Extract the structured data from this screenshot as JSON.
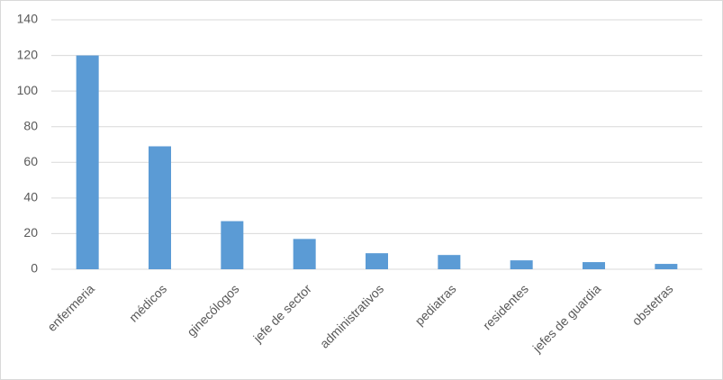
{
  "chart_data": {
    "type": "bar",
    "categories": [
      "enfermeria",
      "médicos",
      "ginecólogos",
      "jefe de sector",
      "administrativos",
      "pediatras",
      "residentes",
      "jefes de guardia",
      "obstetras"
    ],
    "values": [
      120,
      69,
      27,
      17,
      9,
      8,
      5,
      4,
      3
    ],
    "color": "#5b9bd5",
    "ylim": [
      0,
      140
    ],
    "yticks": [
      0,
      20,
      40,
      60,
      80,
      100,
      120,
      140
    ],
    "grid": true
  }
}
